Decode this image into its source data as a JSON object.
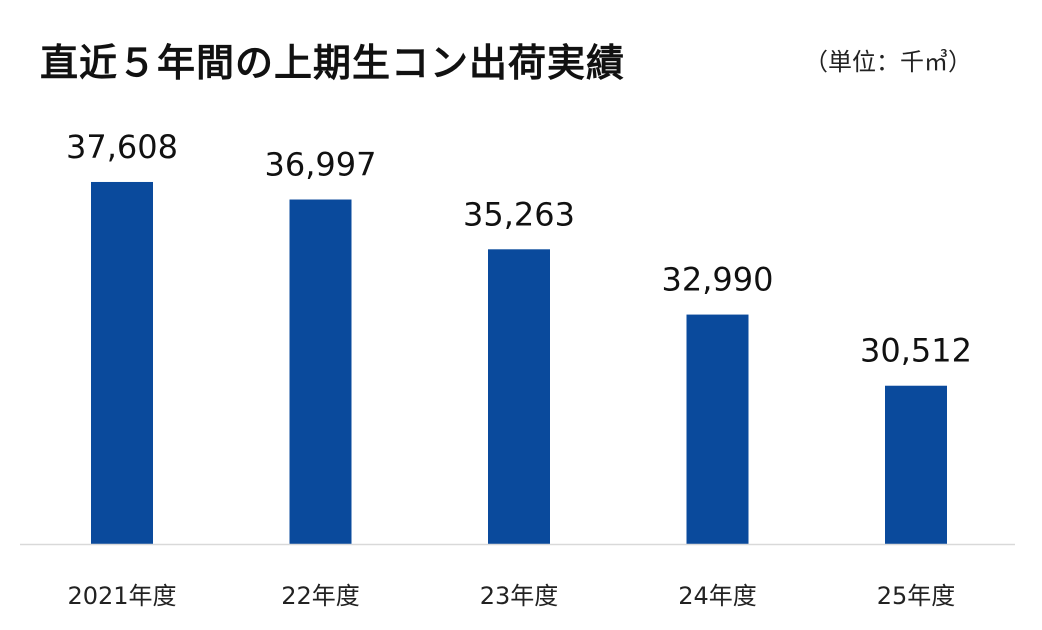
{
  "chart_data": {
    "type": "bar",
    "title": "直近５年間の上期生コン出荷実績",
    "unit_note": "（単位：千㎥）",
    "categories": [
      "2021年度",
      "22年度",
      "23年度",
      "24年度",
      "25年度"
    ],
    "values": [
      37608,
      36997,
      35263,
      32990,
      30512
    ],
    "value_labels": [
      "37,608",
      "36,997",
      "35,263",
      "32,990",
      "30,512"
    ],
    "xlabel": "",
    "ylabel": "",
    "ylim": [
      25000,
      39000
    ],
    "grid": false,
    "legend": "none",
    "bar_color": "#0A4A9C",
    "axis_color": "#D9D9D9"
  }
}
